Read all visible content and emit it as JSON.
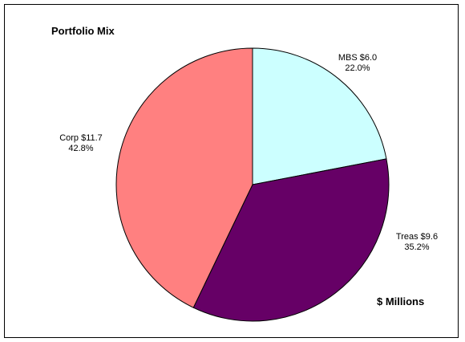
{
  "chart_data": {
    "type": "pie",
    "title": "Portfolio Mix",
    "annotation": "$ Millions",
    "slices": [
      {
        "name": "MBS",
        "value_label": "$6.0",
        "value": 6.0,
        "percent": 22.0,
        "percent_label": "22.0%",
        "color": "#ccffff"
      },
      {
        "name": "Treas",
        "value_label": "$9.6",
        "value": 9.6,
        "percent": 35.2,
        "percent_label": "35.2%",
        "color": "#660066"
      },
      {
        "name": "Corp",
        "value_label": "$11.7",
        "value": 11.7,
        "percent": 42.8,
        "percent_label": "42.8%",
        "color": "#ff8080"
      }
    ],
    "start_angle": "12 o'clock",
    "direction": "clockwise",
    "legend": "none",
    "slice_border_color": "#000000"
  }
}
